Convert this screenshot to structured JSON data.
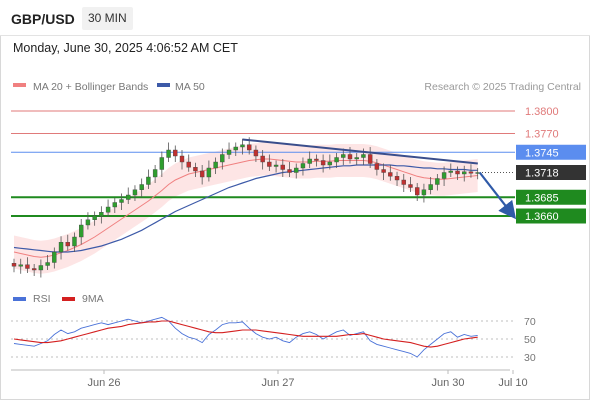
{
  "header": {
    "pair": "GBP/USD",
    "timeframe": "30 MIN",
    "datetime": "Monday, June 30, 2025 4:06:52 AM CET"
  },
  "legend": {
    "ma20": "MA 20 + Bollinger Bands",
    "ma50": "MA 50",
    "credit": "Research © 2025 Trading Central",
    "rsi": "RSI",
    "rsi_ma": "9MA"
  },
  "colors": {
    "ma20": "#f08080",
    "ma50": "#3d5aa8",
    "bollinger_fill": "#fde0e0",
    "resistance": "#e07a7a",
    "pivot": "#5b8def",
    "support": "#1f8a1f",
    "current": "#333333",
    "trend": "#3a4e8c",
    "rsi": "#4a72d8",
    "rsi_ma": "#d42020"
  },
  "chart_data": {
    "type": "line",
    "price_levels": [
      {
        "value": 1.38,
        "label": "1.3800",
        "kind": "resistance"
      },
      {
        "value": 1.377,
        "label": "1.3770",
        "kind": "resistance"
      },
      {
        "value": 1.3745,
        "label": "1.3745",
        "kind": "pivot"
      },
      {
        "value": 1.3718,
        "label": "1.3718",
        "kind": "current"
      },
      {
        "value": 1.3685,
        "label": "1.3685",
        "kind": "support"
      },
      {
        "value": 1.366,
        "label": "1.3660",
        "kind": "support"
      }
    ],
    "x_ticks": [
      "Jun 26",
      "Jun 27",
      "Jun 30",
      "Jul 10"
    ],
    "rsi_ticks": [
      70,
      50,
      30
    ],
    "price_series": {
      "name": "GBP/USD",
      "values": [
        1.3593,
        1.3595,
        1.359,
        1.3588,
        1.3594,
        1.3598,
        1.3612,
        1.3625,
        1.362,
        1.3632,
        1.3648,
        1.3655,
        1.366,
        1.3665,
        1.3672,
        1.3678,
        1.3682,
        1.3688,
        1.3695,
        1.3702,
        1.3712,
        1.3722,
        1.3738,
        1.3748,
        1.374,
        1.3732,
        1.3725,
        1.372,
        1.3712,
        1.3724,
        1.3732,
        1.3742,
        1.3748,
        1.3752,
        1.3755,
        1.3748,
        1.374,
        1.3732,
        1.3726,
        1.3728,
        1.3722,
        1.3718,
        1.3724,
        1.373,
        1.3736,
        1.3734,
        1.3728,
        1.3732,
        1.3738,
        1.3742,
        1.3736,
        1.3738,
        1.3742,
        1.373,
        1.3722,
        1.3718,
        1.3713,
        1.3708,
        1.3702,
        1.3698,
        1.3688,
        1.3695,
        1.3702,
        1.371,
        1.3718,
        1.372,
        1.3716,
        1.3719,
        1.3717,
        1.3718
      ]
    },
    "ma20_values": [
      1.3612,
      1.361,
      1.3608,
      1.3606,
      1.3605,
      1.3606,
      1.3608,
      1.3611,
      1.3614,
      1.3618,
      1.3622,
      1.3627,
      1.3632,
      1.3638,
      1.3644,
      1.365,
      1.3656,
      1.3662,
      1.3668,
      1.3674,
      1.368,
      1.3687,
      1.3694,
      1.3702,
      1.3708,
      1.3712,
      1.3716,
      1.3718,
      1.372,
      1.3722,
      1.3724,
      1.3726,
      1.3728,
      1.373,
      1.3732,
      1.3734,
      1.3735,
      1.3736,
      1.3736,
      1.3735,
      1.3734,
      1.3733,
      1.3732,
      1.3732,
      1.3732,
      1.3733,
      1.3733,
      1.3733,
      1.3734,
      1.3734,
      1.3734,
      1.3734,
      1.3734,
      1.3733,
      1.3731,
      1.3728,
      1.3725,
      1.3722,
      1.3719,
      1.3716,
      1.3713,
      1.3711,
      1.371,
      1.3709,
      1.3709,
      1.371,
      1.3711,
      1.3712,
      1.3713,
      1.3714
    ],
    "bollinger_width": 0.0022,
    "ma50_values": [
      1.3618,
      1.3617,
      1.3616,
      1.3615,
      1.3614,
      1.3613,
      1.3612,
      1.3612,
      1.3612,
      1.3613,
      1.3614,
      1.3616,
      1.3618,
      1.362,
      1.3623,
      1.3626,
      1.3629,
      1.3633,
      1.3637,
      1.3641,
      1.3646,
      1.3651,
      1.3656,
      1.3661,
      1.3666,
      1.367,
      1.3674,
      1.3678,
      1.3682,
      1.3686,
      1.369,
      1.3694,
      1.3698,
      1.3701,
      1.3704,
      1.3707,
      1.371,
      1.3712,
      1.3714,
      1.3716,
      1.3718,
      1.3719,
      1.372,
      1.3721,
      1.3722,
      1.3723,
      1.3724,
      1.3725,
      1.3726,
      1.3727,
      1.3727,
      1.3728,
      1.3728,
      1.3728,
      1.3728,
      1.3728,
      1.3728,
      1.3727,
      1.3727,
      1.3726,
      1.3725,
      1.3724,
      1.3724,
      1.3723,
      1.3723,
      1.3722,
      1.3722,
      1.3722,
      1.3721,
      1.3721
    ],
    "trendline": [
      {
        "bar": 37,
        "value": 1.3762
      },
      {
        "bar": 72,
        "value": 1.373
      }
    ],
    "rsi_values": [
      45,
      44,
      43,
      42,
      45,
      48,
      55,
      60,
      56,
      58,
      62,
      64,
      66,
      68,
      66,
      68,
      70,
      72,
      70,
      68,
      70,
      72,
      74,
      70,
      62,
      56,
      52,
      50,
      46,
      55,
      60,
      66,
      68,
      68,
      69,
      62,
      56,
      52,
      50,
      52,
      48,
      46,
      52,
      56,
      58,
      55,
      50,
      54,
      58,
      60,
      54,
      56,
      58,
      48,
      44,
      42,
      40,
      38,
      36,
      34,
      30,
      38,
      44,
      50,
      56,
      58,
      52,
      55,
      53,
      54
    ],
    "rsi_ma_values": [
      50,
      49,
      48,
      47,
      46,
      46,
      47,
      48,
      50,
      52,
      54,
      56,
      58,
      60,
      62,
      63,
      64,
      66,
      67,
      68,
      69,
      69,
      70,
      70,
      68,
      66,
      64,
      62,
      60,
      58,
      57,
      57,
      58,
      59,
      60,
      60,
      60,
      59,
      58,
      57,
      56,
      55,
      54,
      53,
      53,
      53,
      53,
      53,
      53,
      54,
      55,
      55,
      56,
      54,
      52,
      50,
      49,
      48,
      47,
      46,
      44,
      42,
      41,
      42,
      44,
      46,
      48,
      50,
      51,
      52
    ],
    "forecast": {
      "from": 1.3718,
      "to": 1.366
    }
  }
}
